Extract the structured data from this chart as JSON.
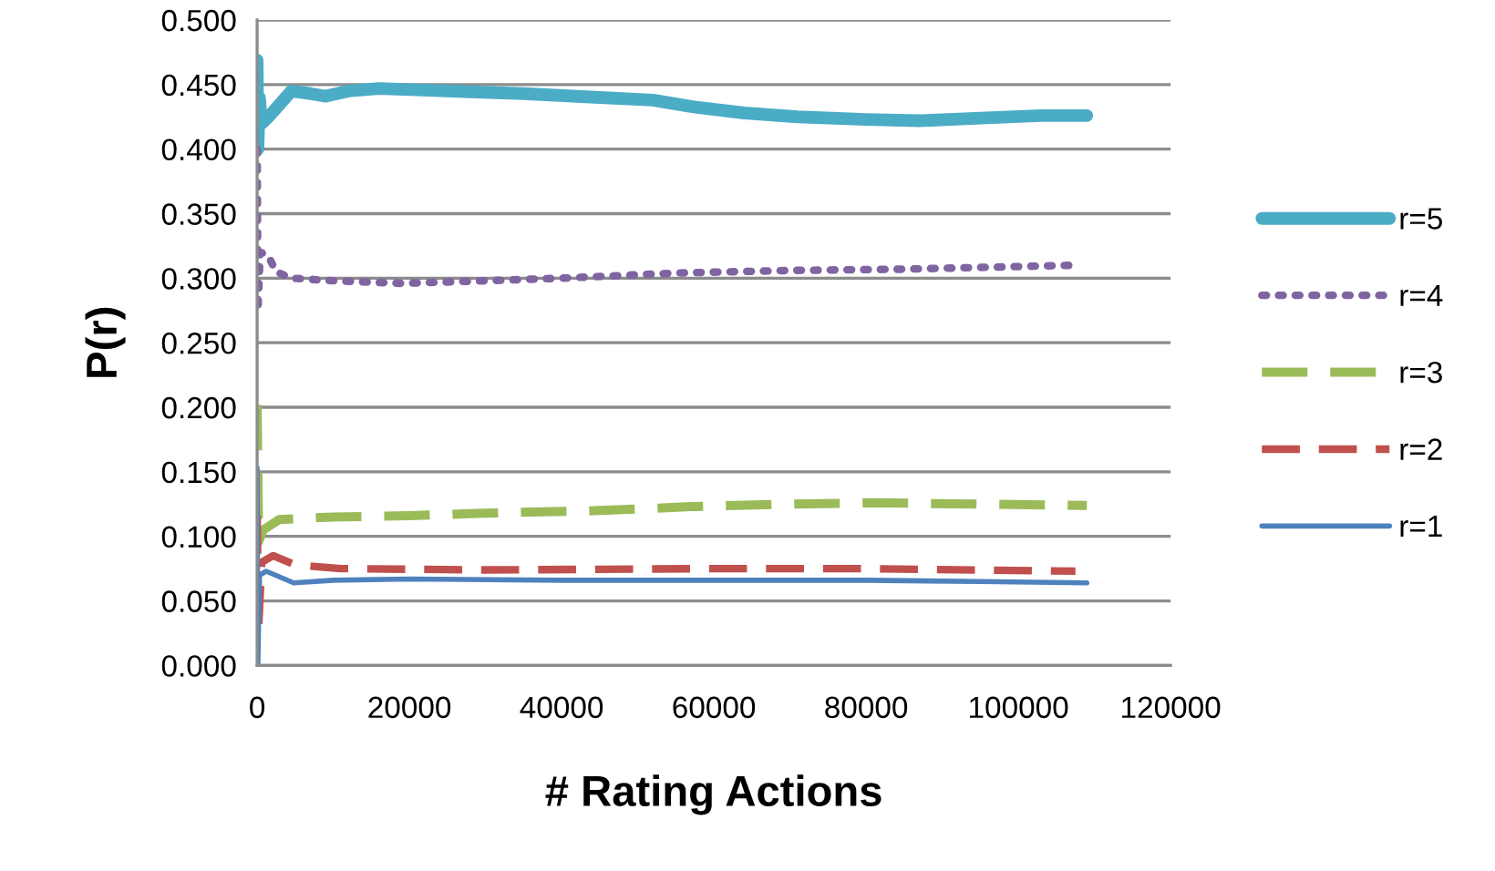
{
  "chart_data": {
    "type": "line",
    "xlabel": "# Rating Actions",
    "ylabel": "P(r)",
    "xlim": [
      0,
      120000
    ],
    "xticks": [
      0,
      20000,
      40000,
      60000,
      80000,
      100000,
      120000
    ],
    "ylim": [
      0,
      0.5
    ],
    "yticks": [
      {
        "value": 0,
        "label": "0.000"
      },
      {
        "value": 0.05,
        "label": "0.050"
      },
      {
        "value": 0.1,
        "label": "0.100"
      },
      {
        "value": 0.15,
        "label": "0.150"
      },
      {
        "value": 0.2,
        "label": "0.200"
      },
      {
        "value": 0.25,
        "label": "0.250"
      },
      {
        "value": 0.3,
        "label": "0.300"
      },
      {
        "value": 0.35,
        "label": "0.350"
      },
      {
        "value": 0.4,
        "label": "0.400"
      },
      {
        "value": 0.45,
        "label": "0.450"
      },
      {
        "value": 0.5,
        "label": "0.500"
      }
    ],
    "grid": "y",
    "legend": "right",
    "marker": "none",
    "series": [
      {
        "name": "r=5",
        "color": "#4bacc6",
        "line_style": "solid",
        "x": [
          0,
          100,
          300,
          600,
          1500,
          3000,
          4500,
          7000,
          9000,
          12000,
          16000,
          25000,
          35000,
          45000,
          52000,
          57000,
          64000,
          71000,
          80000,
          87000,
          95000,
          103000,
          109000
        ],
        "values": [
          0.469,
          0.4,
          0.44,
          0.42,
          0.425,
          0.435,
          0.445,
          0.443,
          0.441,
          0.445,
          0.447,
          0.445,
          0.443,
          0.44,
          0.438,
          0.433,
          0.428,
          0.425,
          0.423,
          0.422,
          0.424,
          0.426,
          0.426
        ]
      },
      {
        "name": "r=4",
        "color": "#8064a2",
        "line_style": "dotted",
        "x": [
          0,
          100,
          400,
          1400,
          2500,
          4500,
          10000,
          19000,
          30000,
          40000,
          55000,
          70000,
          85000,
          100000,
          107000
        ],
        "values": [
          0.4,
          0.275,
          0.32,
          0.318,
          0.305,
          0.3,
          0.298,
          0.296,
          0.298,
          0.3,
          0.304,
          0.306,
          0.307,
          0.309,
          0.31
        ]
      },
      {
        "name": "r=3",
        "color": "#9bbb59",
        "line_style": "dashed",
        "x": [
          0,
          200,
          800,
          2900,
          10000,
          20000,
          30000,
          45000,
          57000,
          70000,
          80500,
          95000,
          109000
        ],
        "values": [
          0.202,
          0.096,
          0.105,
          0.113,
          0.115,
          0.116,
          0.118,
          0.12,
          0.123,
          0.125,
          0.126,
          0.125,
          0.124
        ]
      },
      {
        "name": "r=2",
        "color": "#c0504d",
        "line_style": "dashed",
        "x": [
          0,
          200,
          600,
          2100,
          5000,
          11000,
          30000,
          60000,
          80000,
          107500
        ],
        "values": [
          0.116,
          0.03,
          0.08,
          0.085,
          0.078,
          0.075,
          0.074,
          0.075,
          0.075,
          0.073
        ]
      },
      {
        "name": "r=1",
        "color": "#4f81bd",
        "line_style": "solid",
        "x": [
          0,
          100,
          300,
          1200,
          4800,
          10000,
          20000,
          40000,
          60000,
          80000,
          95000,
          109000
        ],
        "values": [
          0.153,
          0.0,
          0.07,
          0.073,
          0.064,
          0.066,
          0.067,
          0.066,
          0.066,
          0.066,
          0.065,
          0.064
        ]
      }
    ]
  }
}
